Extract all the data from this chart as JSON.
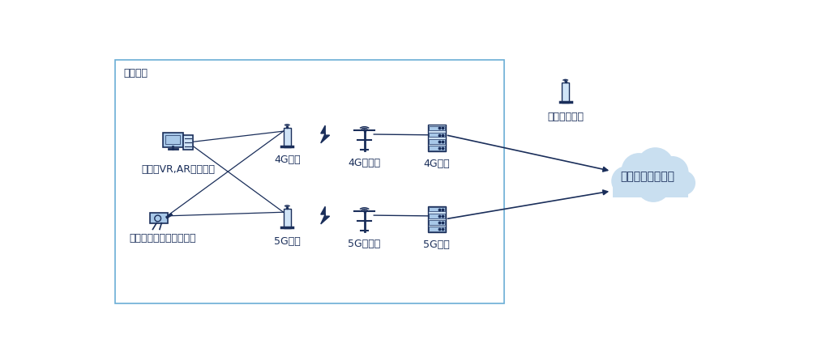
{
  "bg_color": "#ffffff",
  "box_color": "#6baed6",
  "dark_blue": "#1a2e5a",
  "light_blue": "#bdd7ee",
  "box_label": "昭和基地",
  "labels": {
    "terminal": "端末、VR,AR機器など",
    "camera": "カメラなど映像伝送機器",
    "4g_terminal": "4G端末",
    "4g_base": "4G基地局",
    "4g_core": "4Gコア",
    "5g_terminal": "5G端末",
    "5g_base": "5G基地局",
    "5g_core": "5Gコア",
    "radio": "電波伝搝測定",
    "network": "外部ネットワーク"
  },
  "font_size_label": 9,
  "font_size_box": 9,
  "server_face": "#d0e4f7",
  "server_slot": "#a8c8e8",
  "modem_face": "#d0e4f7",
  "screen_face": "#a8c8e8",
  "cloud_color": "#c9dff0"
}
